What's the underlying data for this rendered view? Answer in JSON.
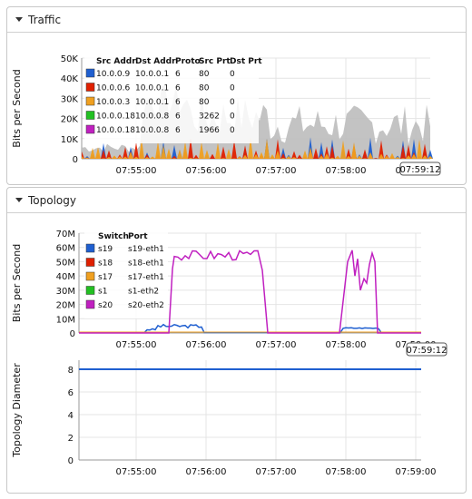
{
  "panels": {
    "traffic_title": "Traffic",
    "topology_title": "Topology"
  },
  "chart_data": [
    {
      "type": "area",
      "title": "Traffic",
      "ylabel": "Bits per Second",
      "ylim": [
        0,
        50000
      ],
      "yticks": [
        "0",
        "10K",
        "20K",
        "30K",
        "40K",
        "50K"
      ],
      "xticks": [
        "07:55:00",
        "07:56:00",
        "07:57:00",
        "07:58:00",
        "07:59:00"
      ],
      "cursor_label": "07:59:12",
      "legend_headers": [
        "Src Addr",
        "Dst Addr",
        "Proto",
        "Src Prt",
        "Dst Prt"
      ],
      "legend_rows": [
        {
          "color": "#1f5fd0",
          "cells": [
            "10.0.0.9",
            "10.0.0.1",
            "6",
            "80",
            "0"
          ]
        },
        {
          "color": "#e02000",
          "cells": [
            "10.0.0.6",
            "10.0.0.1",
            "6",
            "80",
            "0"
          ]
        },
        {
          "color": "#f0a020",
          "cells": [
            "10.0.0.3",
            "10.0.0.1",
            "6",
            "80",
            "0"
          ]
        },
        {
          "color": "#22c022",
          "cells": [
            "10.0.0.18",
            "10.0.0.8",
            "6",
            "3262",
            "0"
          ]
        },
        {
          "color": "#c020c0",
          "cells": [
            "10.0.0.18",
            "10.0.0.8",
            "6",
            "1966",
            "0"
          ]
        }
      ]
    },
    {
      "type": "line",
      "ylabel": "Bits per Second",
      "ylim": [
        0,
        70000000
      ],
      "yticks": [
        "0",
        "10M",
        "20M",
        "30M",
        "40M",
        "50M",
        "60M",
        "70M"
      ],
      "xticks": [
        "07:55:00",
        "07:56:00",
        "07:57:00",
        "07:58:00",
        "07:59:00"
      ],
      "cursor_label": "07:59:12",
      "legend_headers": [
        "Switch",
        "Port"
      ],
      "legend_rows": [
        {
          "color": "#1f5fd0",
          "cells": [
            "s19",
            "s19-eth1"
          ]
        },
        {
          "color": "#e02000",
          "cells": [
            "s18",
            "s18-eth1"
          ]
        },
        {
          "color": "#f0a020",
          "cells": [
            "s17",
            "s17-eth1"
          ]
        },
        {
          "color": "#22c022",
          "cells": [
            "s1",
            "s1-eth2"
          ]
        },
        {
          "color": "#c020c0",
          "cells": [
            "s20",
            "s20-eth2"
          ]
        }
      ]
    },
    {
      "type": "line",
      "ylabel": "Topology Diameter",
      "ylim": [
        0,
        9
      ],
      "yticks": [
        "0",
        "2",
        "4",
        "6",
        "8"
      ],
      "xticks": [
        "07:55:00",
        "07:56:00",
        "07:57:00",
        "07:58:00",
        "07:59:00"
      ],
      "series": [
        {
          "color": "#1f5fd0",
          "values": [
            8,
            8
          ]
        }
      ]
    }
  ]
}
